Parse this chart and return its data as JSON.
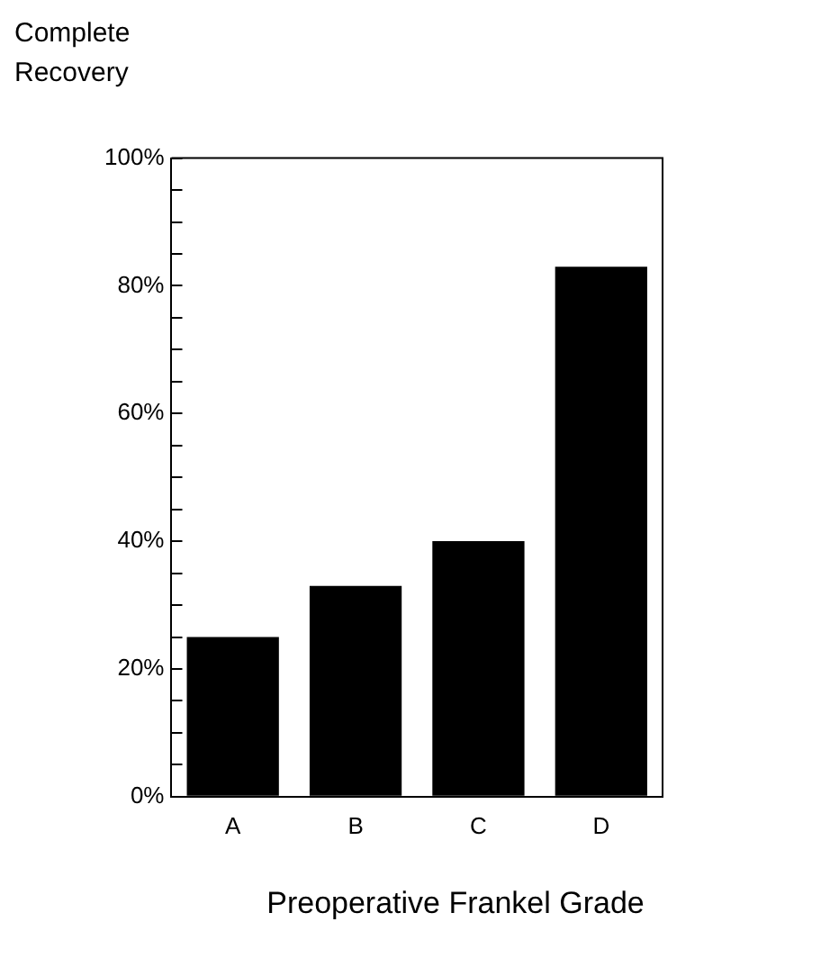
{
  "chart_data": {
    "type": "bar",
    "ylabel": "Complete\nRecovery",
    "xlabel": "Preoperative Frankel Grade",
    "categories": [
      "A",
      "B",
      "C",
      "D"
    ],
    "values": [
      25,
      33,
      40,
      83
    ],
    "color": "#000000",
    "ylim": [
      0,
      100
    ],
    "yticks": [
      {
        "value": 0,
        "label": "0%"
      },
      {
        "value": 5,
        "label": null
      },
      {
        "value": 10,
        "label": null
      },
      {
        "value": 15,
        "label": null
      },
      {
        "value": 20,
        "label": "20%"
      },
      {
        "value": 25,
        "label": null
      },
      {
        "value": 30,
        "label": null
      },
      {
        "value": 35,
        "label": null
      },
      {
        "value": 40,
        "label": "40%"
      },
      {
        "value": 45,
        "label": null
      },
      {
        "value": 50,
        "label": null
      },
      {
        "value": 55,
        "label": null
      },
      {
        "value": 60,
        "label": "60%"
      },
      {
        "value": 65,
        "label": null
      },
      {
        "value": 70,
        "label": null
      },
      {
        "value": 75,
        "label": null
      },
      {
        "value": 80,
        "label": "80%"
      },
      {
        "value": 85,
        "label": null
      },
      {
        "value": 90,
        "label": null
      },
      {
        "value": 95,
        "label": null
      },
      {
        "value": 100,
        "label": "100%"
      }
    ],
    "grid": false,
    "legend": false
  }
}
